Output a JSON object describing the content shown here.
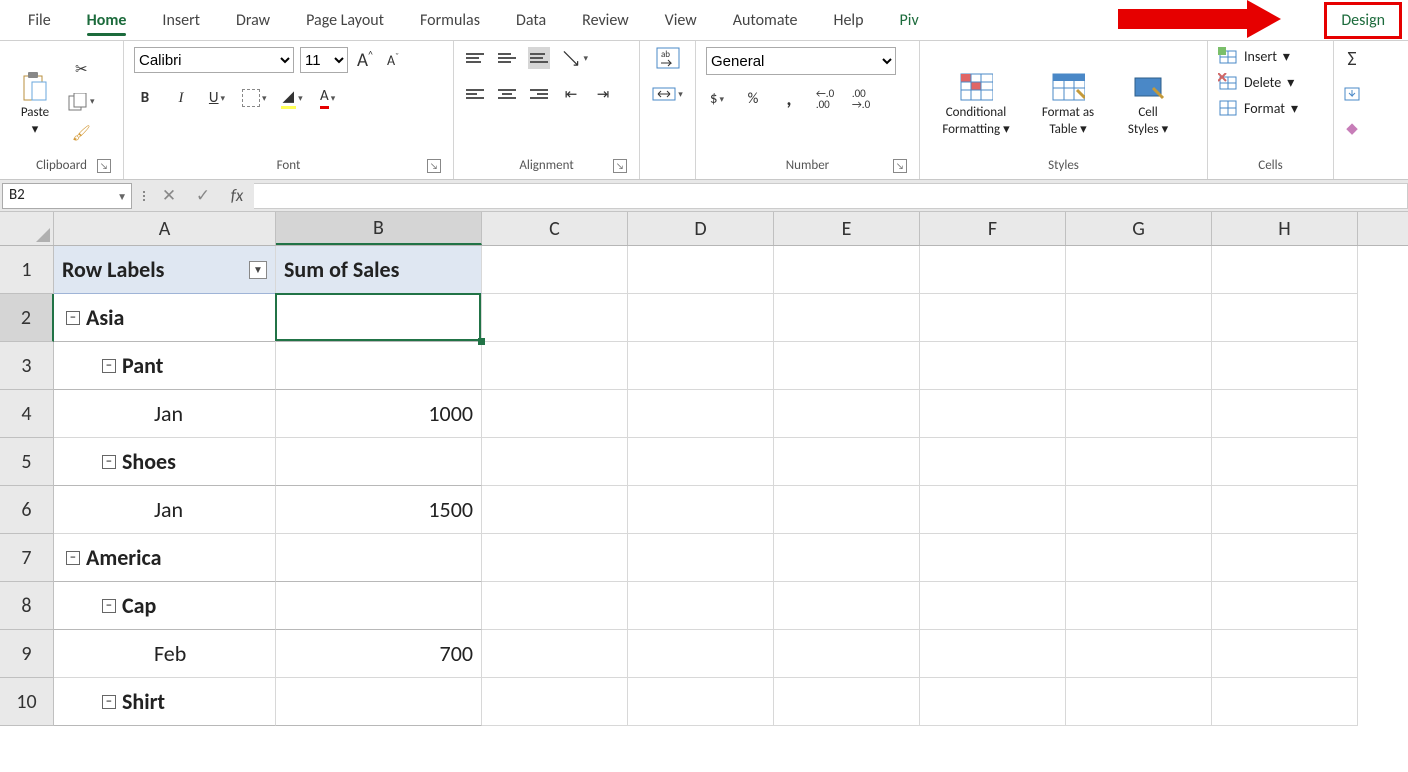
{
  "tabs": {
    "items": [
      "File",
      "Home",
      "Insert",
      "Draw",
      "Page Layout",
      "Formulas",
      "Data",
      "Review",
      "View",
      "Automate",
      "Help"
    ],
    "active": "Home",
    "partial": "Piv",
    "design": "Design"
  },
  "ribbon": {
    "clipboard": {
      "label": "Clipboard",
      "paste": "Paste"
    },
    "font": {
      "label": "Font",
      "name": "Calibri",
      "size": "11",
      "bold": "B",
      "italic": "I",
      "underline": "U",
      "A_big": "A",
      "A_small": "A",
      "A_color": "A"
    },
    "alignment": {
      "label": "Alignment",
      "ab": "ab"
    },
    "number": {
      "label": "Number",
      "format": "General",
      "dollar": "$",
      "percent": "%",
      "comma": ",",
      "inc": ".0",
      "inc2": ".00",
      "dec": ".00",
      "dec2": ".0"
    },
    "styles": {
      "label": "Styles",
      "cond1": "Conditional",
      "cond2": "Formatting",
      "fmt1": "Format as",
      "fmt2": "Table",
      "cell1": "Cell",
      "cell2": "Styles"
    },
    "cells": {
      "label": "Cells",
      "insert": "Insert",
      "delete": "Delete",
      "format": "Format"
    }
  },
  "fbar": {
    "cellref": "B2",
    "x": "✕",
    "check": "✓",
    "fx": "fx"
  },
  "grid": {
    "colWidths": {
      "A": 222,
      "B": 206,
      "rest": 146
    },
    "columns": [
      "A",
      "B",
      "C",
      "D",
      "E",
      "F",
      "G",
      "H"
    ],
    "rowCount": 10,
    "selectedCell": {
      "row": 2,
      "col": "B"
    },
    "header": {
      "A": "Row Labels",
      "B": "Sum of Sales"
    },
    "rows": [
      {
        "type": "region",
        "indent": 1,
        "label": "Asia"
      },
      {
        "type": "product",
        "indent": 2,
        "label": "Pant"
      },
      {
        "type": "month",
        "indent": 3,
        "label": "Jan",
        "value": "1000"
      },
      {
        "type": "product",
        "indent": 2,
        "label": "Shoes"
      },
      {
        "type": "month",
        "indent": 3,
        "label": "Jan",
        "value": "1500"
      },
      {
        "type": "region",
        "indent": 1,
        "label": "America"
      },
      {
        "type": "product",
        "indent": 2,
        "label": "Cap"
      },
      {
        "type": "month",
        "indent": 3,
        "label": "Feb",
        "value": "700"
      },
      {
        "type": "product",
        "indent": 2,
        "label": "Shirt"
      }
    ]
  },
  "colors": {
    "accent_green": "#217346",
    "callout_red": "#e60000",
    "header_fill": "#dfe7f2"
  }
}
